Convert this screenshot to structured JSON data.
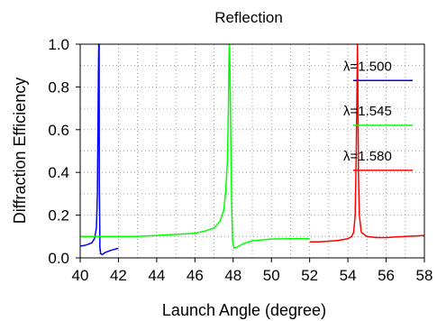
{
  "chart_data": {
    "type": "line",
    "title": "Reflection",
    "xlabel": "Launch Angle (degree)",
    "ylabel": "Diffraction Efficiency",
    "xlim": [
      40,
      58
    ],
    "ylim": [
      0,
      1.0
    ],
    "xticks": [
      40,
      42,
      44,
      46,
      48,
      50,
      52,
      54,
      56,
      58
    ],
    "yticks": [
      0.0,
      0.2,
      0.4,
      0.6,
      0.8,
      1.0
    ],
    "xtick_labels": [
      "40",
      "42",
      "44",
      "46",
      "48",
      "50",
      "52",
      "54",
      "56",
      "58"
    ],
    "ytick_labels": [
      "0.0",
      "0.2",
      "0.4",
      "0.6",
      "0.8",
      "1.0"
    ],
    "grid": true,
    "legend_position": "right",
    "series": [
      {
        "name": "λ=1.500",
        "color": "#0000ff",
        "legend_y": 0.83,
        "points": [
          [
            40.0,
            0.055
          ],
          [
            40.3,
            0.06
          ],
          [
            40.6,
            0.07
          ],
          [
            40.75,
            0.09
          ],
          [
            40.85,
            0.14
          ],
          [
            40.9,
            0.3
          ],
          [
            40.93,
            0.6
          ],
          [
            40.95,
            0.85
          ],
          [
            40.97,
            1.0
          ],
          [
            40.99,
            1.0
          ],
          [
            41.0,
            0.37
          ],
          [
            41.03,
            0.05
          ],
          [
            41.07,
            0.02
          ],
          [
            41.15,
            0.015
          ],
          [
            41.3,
            0.025
          ],
          [
            41.6,
            0.035
          ],
          [
            42.0,
            0.045
          ]
        ]
      },
      {
        "name": "λ=1.545",
        "color": "#00ff00",
        "legend_y": 0.62,
        "points": [
          [
            40.0,
            0.1
          ],
          [
            41.0,
            0.1
          ],
          [
            42.0,
            0.1
          ],
          [
            43.0,
            0.1
          ],
          [
            44.0,
            0.105
          ],
          [
            45.0,
            0.11
          ],
          [
            46.0,
            0.115
          ],
          [
            46.5,
            0.125
          ],
          [
            47.0,
            0.14
          ],
          [
            47.3,
            0.17
          ],
          [
            47.5,
            0.22
          ],
          [
            47.6,
            0.3
          ],
          [
            47.7,
            0.45
          ],
          [
            47.75,
            0.7
          ],
          [
            47.78,
            0.93
          ],
          [
            47.8,
            1.0
          ],
          [
            47.83,
            0.9
          ],
          [
            47.87,
            0.6
          ],
          [
            47.92,
            0.25
          ],
          [
            47.97,
            0.08
          ],
          [
            48.05,
            0.045
          ],
          [
            48.2,
            0.05
          ],
          [
            48.5,
            0.065
          ],
          [
            49.0,
            0.08
          ],
          [
            50.0,
            0.088
          ],
          [
            51.0,
            0.09
          ],
          [
            52.0,
            0.09
          ]
        ]
      },
      {
        "name": "λ=1.580",
        "color": "#ff0000",
        "legend_y": 0.41,
        "points": [
          [
            52.0,
            0.075
          ],
          [
            52.5,
            0.075
          ],
          [
            53.0,
            0.078
          ],
          [
            53.5,
            0.082
          ],
          [
            54.0,
            0.09
          ],
          [
            54.2,
            0.1
          ],
          [
            54.3,
            0.12
          ],
          [
            54.38,
            0.2
          ],
          [
            54.43,
            0.45
          ],
          [
            54.47,
            0.75
          ],
          [
            54.5,
            1.0
          ],
          [
            54.52,
            0.85
          ],
          [
            54.55,
            0.4
          ],
          [
            54.6,
            0.2
          ],
          [
            54.7,
            0.12
          ],
          [
            55.0,
            0.1
          ],
          [
            55.5,
            0.095
          ],
          [
            56.0,
            0.095
          ],
          [
            56.5,
            0.098
          ],
          [
            57.0,
            0.1
          ],
          [
            57.5,
            0.102
          ],
          [
            58.0,
            0.105
          ]
        ]
      }
    ]
  }
}
